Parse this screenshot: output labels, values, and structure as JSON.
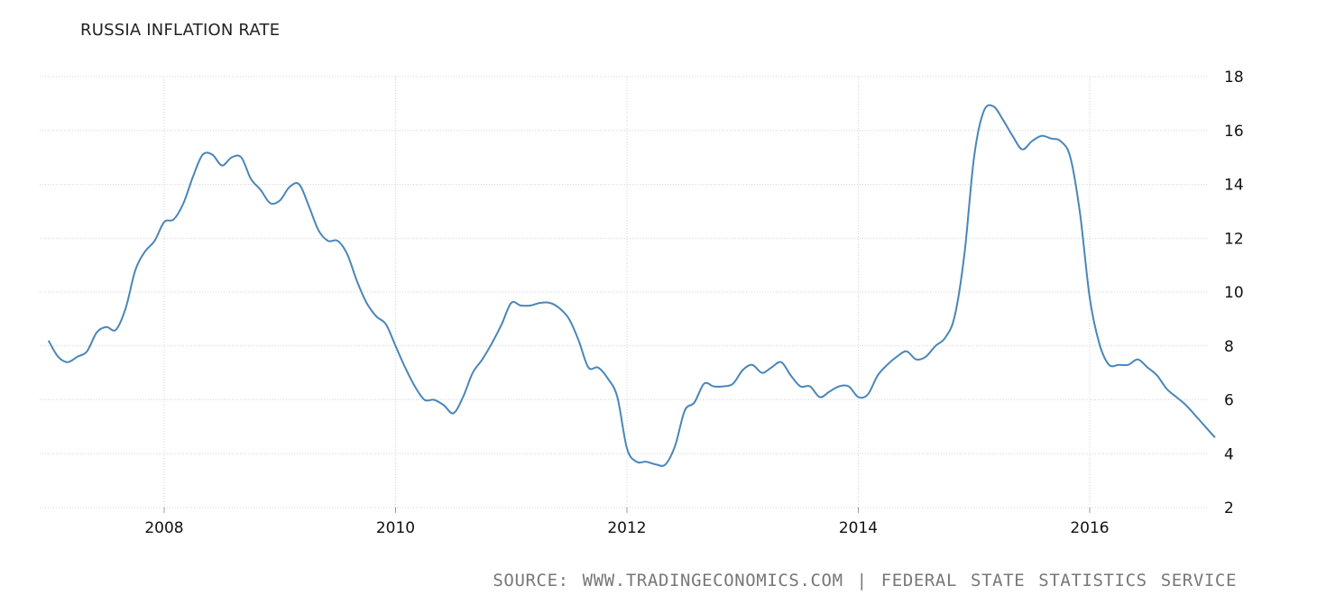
{
  "chart_data": {
    "type": "line",
    "title": "RUSSIA INFLATION RATE",
    "xlabel": "",
    "ylabel": "",
    "xlim": [
      2007.0,
      2017.1
    ],
    "ylim": [
      2,
      18
    ],
    "x_ticks": [
      "2008",
      "2010",
      "2012",
      "2014",
      "2016"
    ],
    "y_ticks": [
      "18",
      "16",
      "14",
      "12",
      "10",
      "8",
      "6",
      "4",
      "2"
    ],
    "grid": true,
    "y_axis_position": "right",
    "series": [
      {
        "color": "#4a86b8",
        "x": [
          2007.0,
          2007.083,
          2007.167,
          2007.25,
          2007.333,
          2007.417,
          2007.5,
          2007.583,
          2007.667,
          2007.75,
          2007.833,
          2007.917,
          2008.0,
          2008.083,
          2008.167,
          2008.25,
          2008.333,
          2008.417,
          2008.5,
          2008.583,
          2008.667,
          2008.75,
          2008.833,
          2008.917,
          2009.0,
          2009.083,
          2009.167,
          2009.25,
          2009.333,
          2009.417,
          2009.5,
          2009.583,
          2009.667,
          2009.75,
          2009.833,
          2009.917,
          2010.0,
          2010.083,
          2010.167,
          2010.25,
          2010.333,
          2010.417,
          2010.5,
          2010.583,
          2010.667,
          2010.75,
          2010.833,
          2010.917,
          2011.0,
          2011.083,
          2011.167,
          2011.25,
          2011.333,
          2011.417,
          2011.5,
          2011.583,
          2011.667,
          2011.75,
          2011.833,
          2011.917,
          2012.0,
          2012.083,
          2012.167,
          2012.25,
          2012.333,
          2012.417,
          2012.5,
          2012.583,
          2012.667,
          2012.75,
          2012.833,
          2012.917,
          2013.0,
          2013.083,
          2013.167,
          2013.25,
          2013.333,
          2013.417,
          2013.5,
          2013.583,
          2013.667,
          2013.75,
          2013.833,
          2013.917,
          2014.0,
          2014.083,
          2014.167,
          2014.25,
          2014.333,
          2014.417,
          2014.5,
          2014.583,
          2014.667,
          2014.75,
          2014.833,
          2014.917,
          2015.0,
          2015.083,
          2015.167,
          2015.25,
          2015.333,
          2015.417,
          2015.5,
          2015.583,
          2015.667,
          2015.75,
          2015.833,
          2015.917,
          2016.0,
          2016.083,
          2016.167,
          2016.25,
          2016.333,
          2016.417,
          2016.5,
          2016.583,
          2016.667,
          2016.75,
          2016.833,
          2016.917,
          2017.0,
          2017.083
        ],
        "values": [
          8.2,
          7.6,
          7.4,
          7.6,
          7.8,
          8.5,
          8.7,
          8.6,
          9.4,
          10.8,
          11.5,
          11.9,
          12.6,
          12.7,
          13.3,
          14.3,
          15.1,
          15.1,
          14.7,
          15.0,
          15.0,
          14.2,
          13.8,
          13.3,
          13.4,
          13.9,
          14.0,
          13.2,
          12.3,
          11.9,
          11.9,
          11.4,
          10.4,
          9.6,
          9.1,
          8.8,
          8.0,
          7.2,
          6.5,
          6.0,
          6.0,
          5.8,
          5.5,
          6.1,
          7.0,
          7.5,
          8.1,
          8.8,
          9.6,
          9.5,
          9.5,
          9.6,
          9.6,
          9.4,
          9.0,
          8.2,
          7.2,
          7.2,
          6.8,
          6.1,
          4.2,
          3.7,
          3.7,
          3.6,
          3.6,
          4.3,
          5.6,
          5.9,
          6.6,
          6.5,
          6.5,
          6.6,
          7.1,
          7.3,
          7.0,
          7.2,
          7.4,
          6.9,
          6.5,
          6.5,
          6.1,
          6.3,
          6.5,
          6.5,
          6.1,
          6.2,
          6.9,
          7.3,
          7.6,
          7.8,
          7.5,
          7.6,
          8.0,
          8.3,
          9.1,
          11.4,
          15.0,
          16.7,
          16.9,
          16.4,
          15.8,
          15.3,
          15.6,
          15.8,
          15.7,
          15.6,
          15.0,
          12.9,
          9.8,
          8.1,
          7.3,
          7.3,
          7.3,
          7.5,
          7.2,
          6.9,
          6.4,
          6.1,
          5.8,
          5.4,
          5.0,
          4.6
        ]
      }
    ]
  },
  "footer": {
    "source": "SOURCE: WWW.TRADINGECONOMICS.COM | FEDERAL STATE STATISTICS SERVICE"
  }
}
